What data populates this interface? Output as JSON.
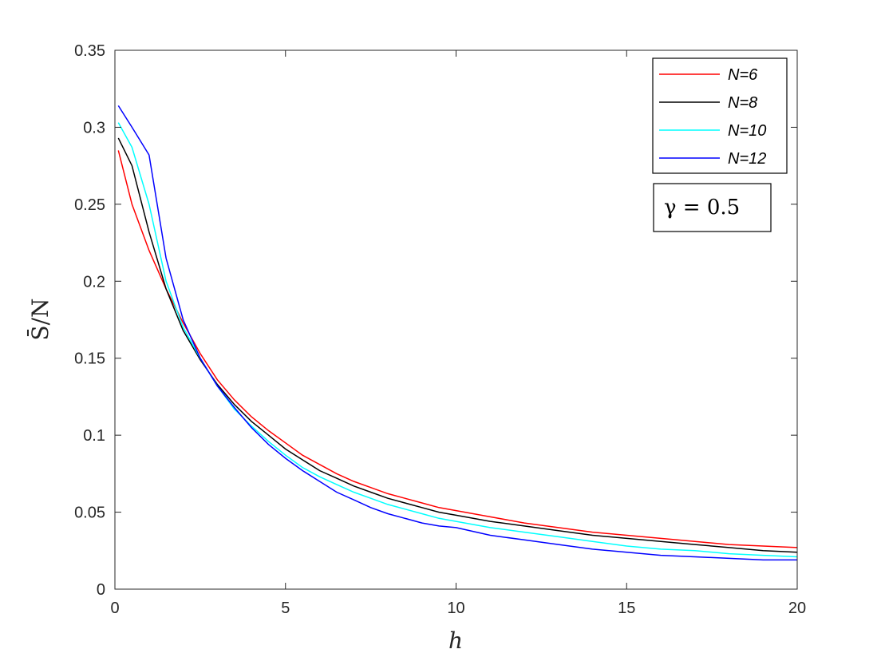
{
  "chart_data": {
    "type": "line",
    "xlabel": "h",
    "ylabel": "S̄/N",
    "xlim": [
      0,
      20
    ],
    "ylim": [
      0,
      0.35
    ],
    "xticks": [
      "0",
      "5",
      "10",
      "15",
      "20"
    ],
    "yticks": [
      "0",
      "0.05",
      "0.1",
      "0.15",
      "0.2",
      "0.25",
      "0.3",
      "0.35"
    ],
    "legend_position": "top-right",
    "grid": false,
    "annotation": "γ = 0.5",
    "x": [
      0.1,
      0.5,
      1,
      1.5,
      2,
      2.5,
      3,
      3.5,
      4,
      4.5,
      5,
      5.5,
      6,
      6.5,
      7,
      7.5,
      8,
      8.5,
      9,
      9.5,
      10,
      11,
      12,
      13,
      14,
      15,
      16,
      17,
      18,
      19,
      20
    ],
    "series": [
      {
        "name": "N=6",
        "color": "#ff0000",
        "values": [
          0.285,
          0.25,
          0.22,
          0.195,
          0.173,
          0.153,
          0.136,
          0.123,
          0.112,
          0.103,
          0.095,
          0.087,
          0.081,
          0.075,
          0.07,
          0.066,
          0.062,
          0.059,
          0.056,
          0.053,
          0.051,
          0.047,
          0.043,
          0.04,
          0.037,
          0.035,
          0.033,
          0.031,
          0.029,
          0.028,
          0.027
        ]
      },
      {
        "name": "N=8",
        "color": "#000000",
        "values": [
          0.293,
          0.275,
          0.232,
          0.195,
          0.168,
          0.149,
          0.133,
          0.12,
          0.109,
          0.1,
          0.091,
          0.084,
          0.077,
          0.072,
          0.067,
          0.063,
          0.059,
          0.056,
          0.053,
          0.05,
          0.048,
          0.044,
          0.041,
          0.038,
          0.035,
          0.033,
          0.031,
          0.029,
          0.027,
          0.025,
          0.024
        ]
      },
      {
        "name": "N=10",
        "color": "#00ffff",
        "values": [
          0.303,
          0.287,
          0.25,
          0.2,
          0.17,
          0.15,
          0.132,
          0.117,
          0.106,
          0.096,
          0.087,
          0.079,
          0.073,
          0.068,
          0.063,
          0.059,
          0.055,
          0.052,
          0.049,
          0.046,
          0.044,
          0.04,
          0.037,
          0.034,
          0.031,
          0.028,
          0.026,
          0.025,
          0.023,
          0.022,
          0.021
        ]
      },
      {
        "name": "N=12",
        "color": "#0000ff",
        "values": [
          0.314,
          0.3,
          0.282,
          0.215,
          0.175,
          0.15,
          0.132,
          0.118,
          0.105,
          0.094,
          0.085,
          0.077,
          0.07,
          0.063,
          0.058,
          0.053,
          0.049,
          0.046,
          0.043,
          0.041,
          0.04,
          0.035,
          0.032,
          0.029,
          0.026,
          0.024,
          0.022,
          0.021,
          0.02,
          0.019,
          0.019
        ]
      }
    ]
  }
}
